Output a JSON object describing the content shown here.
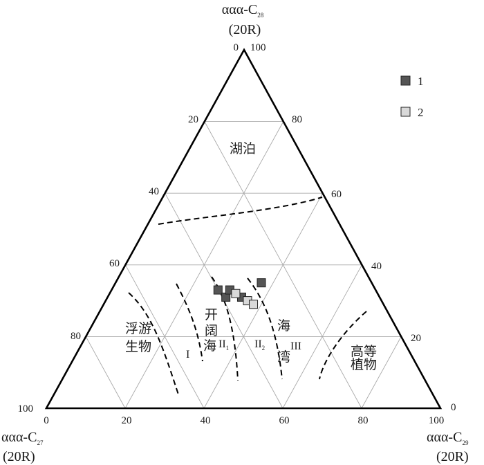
{
  "chart_data": {
    "type": "scatter",
    "subtype": "ternary",
    "axes": {
      "top": {
        "name": "ααα-C",
        "sub": "28",
        "config": "(20R)"
      },
      "left": {
        "name": "ααα-C",
        "sub": "27",
        "config": "(20R)"
      },
      "right": {
        "name": "ααα-C",
        "sub": "29",
        "config": "(20R)"
      }
    },
    "ticks": {
      "left_edge": [
        "0",
        "20",
        "40",
        "60",
        "80",
        "100"
      ],
      "right_edge": [
        "100",
        "80",
        "60",
        "40",
        "20",
        "0"
      ],
      "bottom_edge": [
        "0",
        "20",
        "40",
        "60",
        "80",
        "100"
      ]
    },
    "grid": true,
    "grid_step": 20,
    "legend": {
      "position": "top-right",
      "entries": [
        {
          "label": "1",
          "color": "#555555"
        },
        {
          "label": "2",
          "color": "#d9d9d9"
        }
      ]
    },
    "regions": [
      {
        "name": "lake",
        "text": [
          "湖泊"
        ]
      },
      {
        "name": "plankton",
        "text": [
          "浮游",
          "生物"
        ]
      },
      {
        "name": "open-sea",
        "text": [
          "开",
          "阔",
          "海"
        ]
      },
      {
        "name": "bay",
        "text": [
          "海",
          "湾"
        ]
      },
      {
        "name": "higher-plants",
        "text": [
          "高等",
          "植物"
        ]
      }
    ],
    "zone_labels": [
      {
        "id": "I",
        "text": "I"
      },
      {
        "id": "II1",
        "text": "II",
        "sub": "1"
      },
      {
        "id": "II2",
        "text": "II",
        "sub": "2"
      },
      {
        "id": "III",
        "text": "III"
      }
    ],
    "series": [
      {
        "name": "1",
        "color": "#555555",
        "points": [
          {
            "c27": 40,
            "c28": 33,
            "c29": 27
          },
          {
            "c27": 39,
            "c28": 31,
            "c29": 30
          },
          {
            "c27": 37,
            "c28": 33,
            "c29": 30
          },
          {
            "c27": 28,
            "c28": 35,
            "c29": 37
          },
          {
            "c27": 35,
            "c28": 31,
            "c29": 34
          }
        ]
      },
      {
        "name": "2",
        "color": "#d9d9d9",
        "points": [
          {
            "c27": 36,
            "c28": 32,
            "c29": 32
          },
          {
            "c27": 34,
            "c28": 30,
            "c29": 36
          },
          {
            "c27": 33,
            "c28": 29,
            "c29": 38
          }
        ]
      }
    ]
  }
}
